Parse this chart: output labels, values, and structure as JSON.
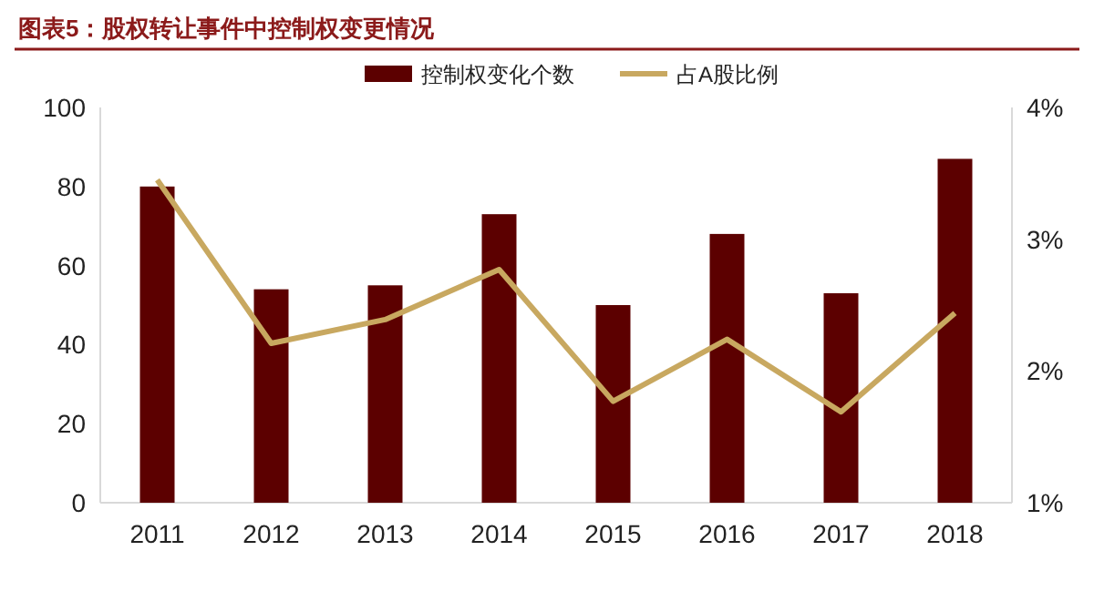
{
  "chart_data": {
    "type": "bar",
    "title": "图表5：股权转让事件中控制权变更情况",
    "categories": [
      "2011",
      "2012",
      "2013",
      "2014",
      "2015",
      "2016",
      "2017",
      "2018"
    ],
    "series": [
      {
        "name": "控制权变化个数",
        "color": "#5c0000",
        "values": [
          80,
          54,
          55,
          73,
          50,
          68,
          53,
          87
        ]
      },
      {
        "name": "占A股比例",
        "type": "line",
        "axis": "y2",
        "color": "#c8a860",
        "values": [
          3.45,
          2.21,
          2.39,
          2.77,
          1.77,
          2.24,
          1.69,
          2.44
        ]
      }
    ],
    "ylim": [
      0,
      100
    ],
    "yticks": [
      0,
      20,
      40,
      60,
      80,
      100
    ],
    "y2lim": [
      1,
      4
    ],
    "y2ticks": [
      {
        "value": 1,
        "label": "1%"
      },
      {
        "value": 2,
        "label": "2%"
      },
      {
        "value": 3,
        "label": "3%"
      },
      {
        "value": 4,
        "label": "4%"
      }
    ],
    "legend": "top",
    "grid": false,
    "marker": "none",
    "line_style": "solid"
  }
}
